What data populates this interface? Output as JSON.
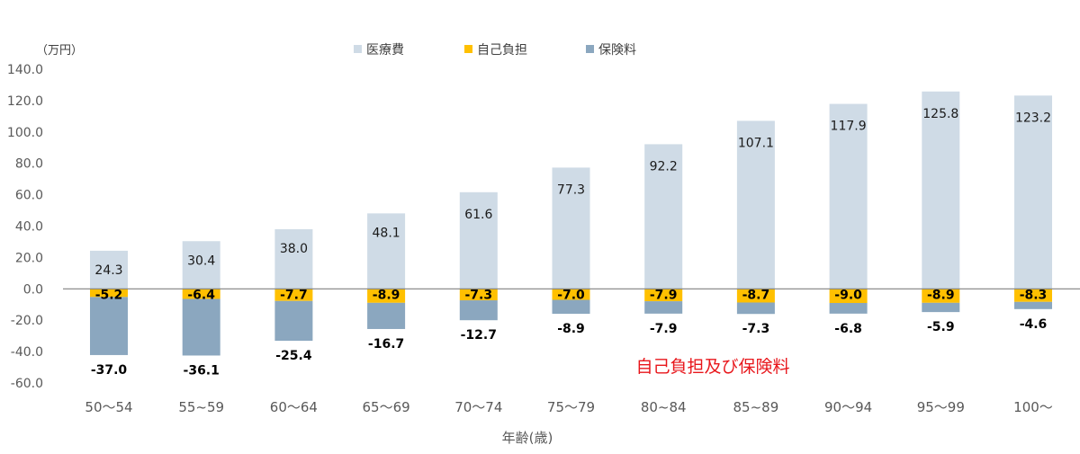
{
  "chart_data": {
    "type": "bar",
    "stacked": true,
    "unit_label": "（万円）",
    "xlabel": "年齢(歳)",
    "annotation": "自己負担及び保険料",
    "ylim": [
      -60,
      140
    ],
    "y_ticks": [
      "140.0",
      "120.0",
      "100.0",
      "80.0",
      "60.0",
      "40.0",
      "20.0",
      "0.0",
      "-20.0",
      "-40.0",
      "-60.0"
    ],
    "y_tick_values": [
      140,
      120,
      100,
      80,
      60,
      40,
      20,
      0,
      -20,
      -40,
      -60
    ],
    "categories": [
      "50～54",
      "55~59",
      "60～64",
      "65～69",
      "70～74",
      "75～79",
      "80~84",
      "85~89",
      "90～94",
      "95～99",
      "100～"
    ],
    "series": [
      {
        "name": "医療費",
        "color": "#cfdbe6",
        "values": [
          24.3,
          30.4,
          38.0,
          48.1,
          61.6,
          77.3,
          92.2,
          107.1,
          117.9,
          125.8,
          123.2
        ],
        "labels": [
          "24.3",
          "30.4",
          "38.0",
          "48.1",
          "61.6",
          "77.3",
          "92.2",
          "107.1",
          "117.9",
          "125.8",
          "123.2"
        ]
      },
      {
        "name": "自己負担",
        "color": "#ffc000",
        "values": [
          -5.2,
          -6.4,
          -7.7,
          -8.9,
          -7.3,
          -7.0,
          -7.9,
          -8.7,
          -9.0,
          -8.9,
          -8.3
        ],
        "labels": [
          "-5.2",
          "-6.4",
          "-7.7",
          "-8.9",
          "-7.3",
          "-7.0",
          "-7.9",
          "-8.7",
          "-9.0",
          "-8.9",
          "-8.3"
        ]
      },
      {
        "name": "保険料",
        "color": "#8ba7bf",
        "values": [
          -37.0,
          -36.1,
          -25.4,
          -16.7,
          -12.7,
          -8.9,
          -7.9,
          -7.3,
          -6.8,
          -5.9,
          -4.6
        ],
        "labels": [
          "-37.0",
          "-36.1",
          "-25.4",
          "-16.7",
          "-12.7",
          "-8.9",
          "-7.9",
          "-7.3",
          "-6.8",
          "-5.9",
          "-4.6"
        ]
      }
    ],
    "grid": false,
    "legend_position": "top"
  }
}
